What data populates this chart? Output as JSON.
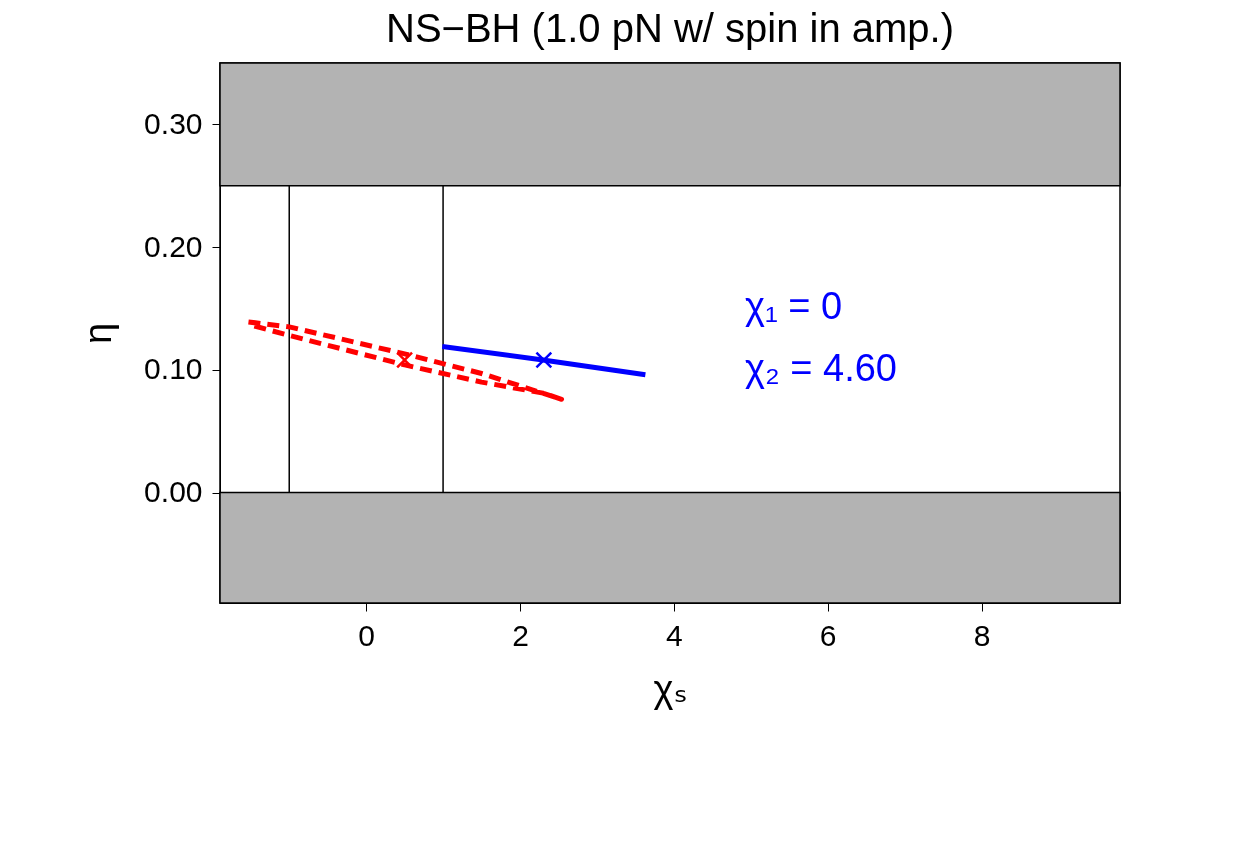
{
  "chart_data": {
    "type": "line",
    "title": "NS−BH (1.0 pN w/ spin in amp.)",
    "xlabel": "χₛ",
    "ylabel": "η",
    "xlim": [
      -1.9,
      9.8
    ],
    "xticks": [
      0,
      2,
      4,
      6,
      8
    ],
    "ylim": [
      -0.09,
      0.35
    ],
    "yticks": [
      {
        "value": 0,
        "label": "0.00"
      },
      {
        "value": 0.1,
        "label": "0.10"
      },
      {
        "value": 0.2,
        "label": "0.20"
      },
      {
        "value": 0.3,
        "label": "0.30"
      }
    ],
    "grid": false,
    "series": [
      {
        "line_style": "dashed",
        "color": "#ff0000",
        "x": [
          -1.53,
          -1.0,
          0.5,
          1.5,
          2.54,
          2.3,
          1.5,
          0.5,
          -1.0,
          -1.53
        ],
        "values": [
          0.139,
          0.135,
          0.113,
          0.097,
          0.076,
          0.081,
          0.09,
          0.104,
          0.128,
          0.137
        ]
      },
      {
        "line_style": "solid",
        "color": "#0000ff",
        "x": [
          0.99,
          2.3,
          3.63
        ],
        "values": [
          0.119,
          0.108,
          0.096
        ]
      },
      {
        "type": "scatter",
        "marker": "cross",
        "color": "#ff0000",
        "x": [
          0.5
        ],
        "values": [
          0.108
        ]
      },
      {
        "type": "scatter",
        "marker": "cross",
        "color": "#0000ff",
        "x": [
          2.31
        ],
        "values": [
          0.108
        ]
      }
    ],
    "ref_lines": [
      {
        "axis": "x",
        "value": -1,
        "color": "#000000"
      },
      {
        "axis": "x",
        "value": 1,
        "color": "#000000"
      }
    ],
    "bands": [
      {
        "axis": "y",
        "from": 0.25,
        "to": 0.35,
        "color": "#b3b3b3"
      },
      {
        "axis": "y",
        "from": -0.09,
        "to": 0,
        "color": "#b3b3b3"
      }
    ],
    "annotations": [
      "χ₁ = 0",
      "χ₂ = 4.60"
    ]
  }
}
